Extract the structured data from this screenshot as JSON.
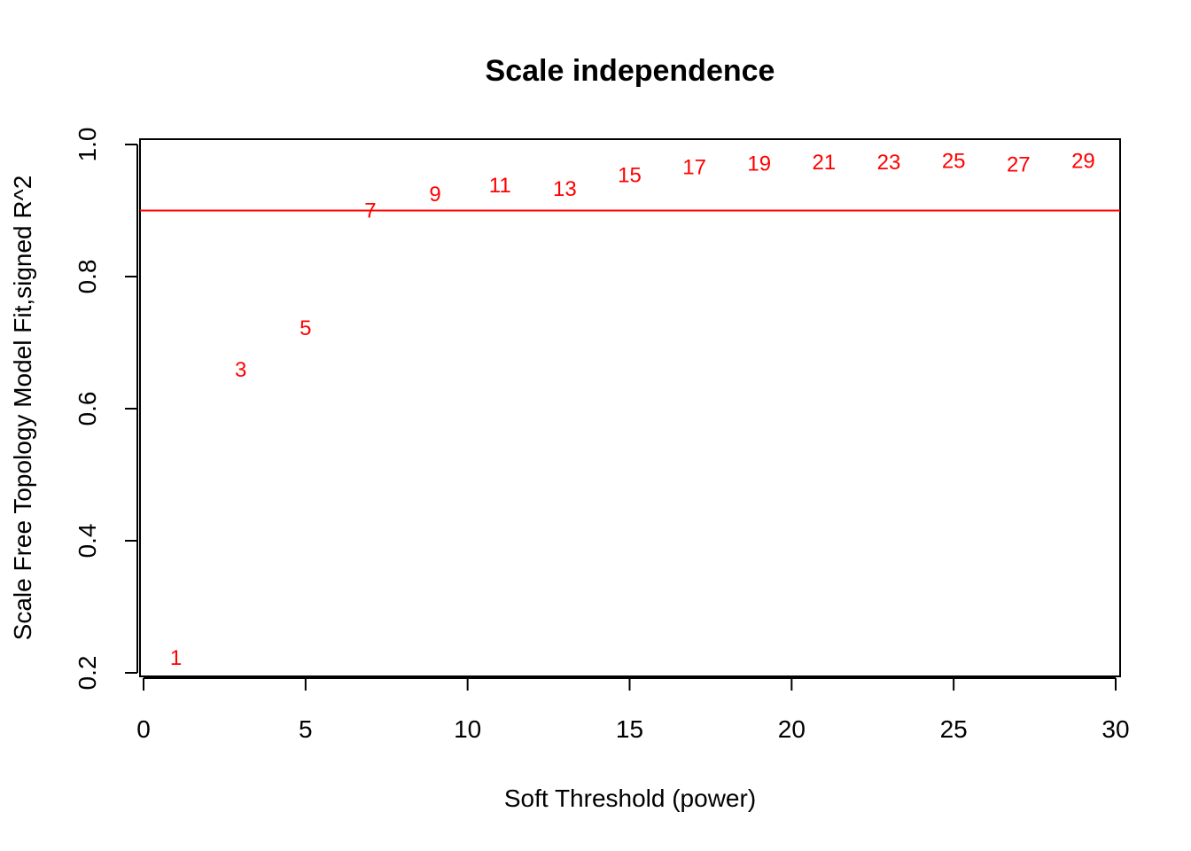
{
  "chart_data": {
    "type": "scatter",
    "title": "Scale independence",
    "xlabel": "Soft Threshold (power)",
    "ylabel": "Scale Free Topology Model Fit,signed R^2",
    "xlim": [
      0,
      30
    ],
    "ylim": [
      0.2,
      1.0
    ],
    "x_ticks": [
      0,
      5,
      10,
      15,
      20,
      25,
      30
    ],
    "y_ticks": [
      0.2,
      0.4,
      0.6,
      0.8,
      1.0
    ],
    "x_tick_labels": [
      "0",
      "5",
      "10",
      "15",
      "20",
      "25",
      "30"
    ],
    "y_tick_labels": [
      "0.2",
      "0.4",
      "0.6",
      "0.8",
      "1.0"
    ],
    "points": [
      {
        "x": 1,
        "y": 0.223,
        "label": "1"
      },
      {
        "x": 3,
        "y": 0.659,
        "label": "3"
      },
      {
        "x": 5,
        "y": 0.722,
        "label": "5"
      },
      {
        "x": 7,
        "y": 0.9,
        "label": "7"
      },
      {
        "x": 9,
        "y": 0.925,
        "label": "9"
      },
      {
        "x": 11,
        "y": 0.938,
        "label": "11"
      },
      {
        "x": 13,
        "y": 0.933,
        "label": "13"
      },
      {
        "x": 15,
        "y": 0.954,
        "label": "15"
      },
      {
        "x": 17,
        "y": 0.966,
        "label": "17"
      },
      {
        "x": 19,
        "y": 0.971,
        "label": "19"
      },
      {
        "x": 21,
        "y": 0.973,
        "label": "21"
      },
      {
        "x": 23,
        "y": 0.973,
        "label": "23"
      },
      {
        "x": 25,
        "y": 0.975,
        "label": "25"
      },
      {
        "x": 27,
        "y": 0.97,
        "label": "27"
      },
      {
        "x": 29,
        "y": 0.975,
        "label": "29"
      }
    ],
    "hline": {
      "y": 0.9,
      "color": "#ff0000"
    },
    "point_color": "#ff0000",
    "grid": false,
    "legend": "none"
  }
}
